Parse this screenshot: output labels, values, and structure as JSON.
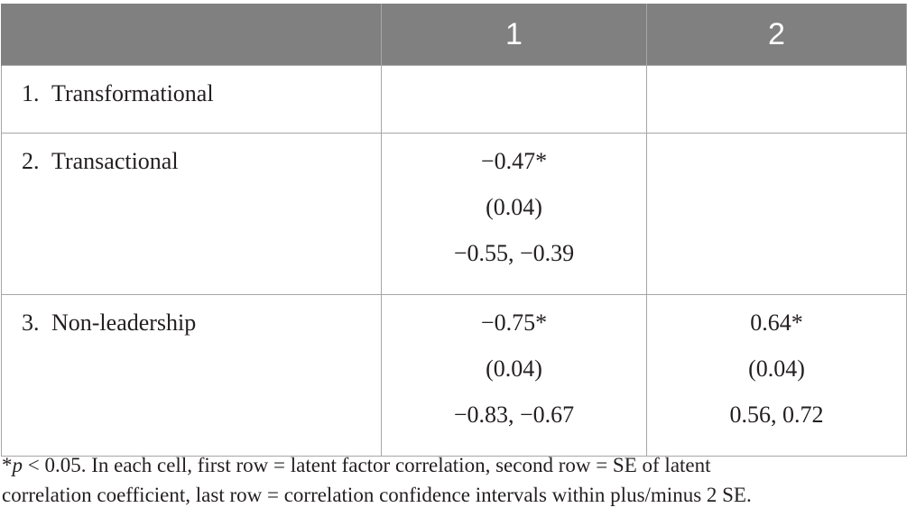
{
  "table": {
    "columns": [
      "",
      "1",
      "2"
    ],
    "rows": [
      {
        "number": "1.",
        "label": "Transformational",
        "col1": [],
        "col2": []
      },
      {
        "number": "2.",
        "label": "Transactional",
        "col1": [
          "−0.47*",
          "(0.04)",
          "−0.55, −0.39"
        ],
        "col2": []
      },
      {
        "number": "3.",
        "label": "Non-leadership",
        "col1": [
          "−0.75*",
          "(0.04)",
          "−0.83, −0.67"
        ],
        "col2": [
          "0.64*",
          "(0.04)",
          "0.56, 0.72"
        ]
      }
    ]
  },
  "footnote": {
    "star": "*",
    "p": "p",
    "line1_rest": " < 0.05. In each cell, first row = latent factor correlation, second row = SE of latent",
    "line2": "correlation coefficient, last row = correlation confidence intervals within plus/minus 2 SE."
  }
}
